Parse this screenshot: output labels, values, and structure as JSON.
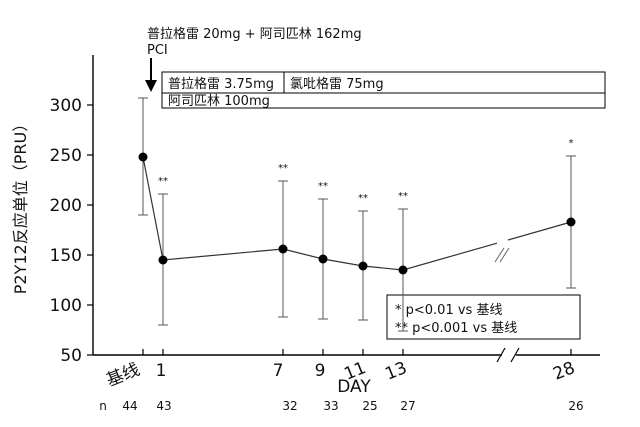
{
  "chart_data": {
    "type": "line",
    "ylabel": "P2Y12反应单位（PRU）",
    "xlabel": "DAY",
    "ylim": [
      50,
      350
    ],
    "yticks": [
      50,
      100,
      150,
      200,
      250,
      300
    ],
    "x_categories": [
      "基线",
      "1",
      "7",
      "9",
      "11",
      "13",
      "28"
    ],
    "series": [
      {
        "values": [
          {
            "x": "基线",
            "mean": 248,
            "upper": 307,
            "lower": 190,
            "sig": ""
          },
          {
            "x": "1",
            "mean": 145,
            "upper": 211,
            "lower": 80,
            "sig": "**"
          },
          {
            "x": "7",
            "mean": 156,
            "upper": 224,
            "lower": 88,
            "sig": "**"
          },
          {
            "x": "9",
            "mean": 146,
            "upper": 206,
            "lower": 86,
            "sig": "**"
          },
          {
            "x": "11",
            "mean": 139,
            "upper": 194,
            "lower": 85,
            "sig": "**"
          },
          {
            "x": "13",
            "mean": 135,
            "upper": 196,
            "lower": 74,
            "sig": "**"
          },
          {
            "x": "28",
            "mean": 183,
            "upper": 249,
            "lower": 117,
            "sig": "*"
          }
        ]
      }
    ],
    "n_label": "n",
    "n_values": [
      "44",
      "43",
      "32",
      "33",
      "25",
      "27",
      "26"
    ],
    "axis_break": true,
    "annotation": {
      "line1": "普拉格雷 20mg + 阿司匹林 162mg",
      "line2": "PCI"
    },
    "treatment_box": {
      "row1_left": "普拉格雷 3.75mg",
      "row1_right": "氯吡格雷 75mg",
      "row2": "阿司匹林 100mg"
    },
    "legend": {
      "line1": "*   p<0.01 vs 基线",
      "line2": "** p<0.001 vs 基线",
      "placement": "bottom-right"
    }
  }
}
